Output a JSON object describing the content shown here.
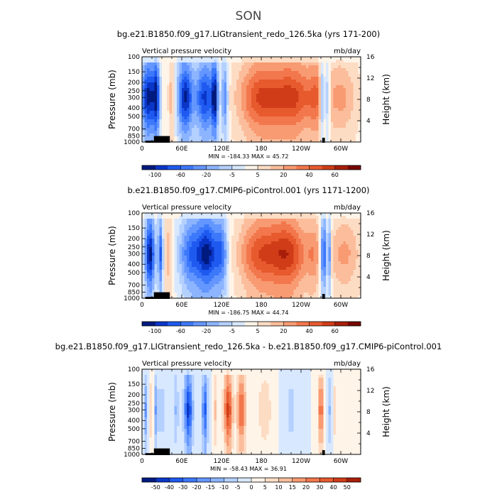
{
  "page": {
    "title": "SON"
  },
  "chart_data": [
    {
      "type": "heatmap",
      "title": "bg.e21.B1850.f09_g17.LIGtransient_redo_126.5ka (yrs 171-200)",
      "left_label": "Vertical pressure velocity",
      "right_label": "mb/day",
      "ylabel": "Pressure (mb)",
      "ylabel_right": "Height (km)",
      "x_ticks": [
        "0",
        "60E",
        "120E",
        "180",
        "120W",
        "60W"
      ],
      "x_tick_values": [
        0,
        60,
        120,
        180,
        240,
        300
      ],
      "xlim": [
        0,
        330
      ],
      "y_ticks": [
        "100",
        "150",
        "200",
        "250",
        "300",
        "400",
        "500",
        "700",
        "850",
        "1000"
      ],
      "y_tick_values": [
        100,
        150,
        200,
        250,
        300,
        400,
        500,
        700,
        850,
        1000
      ],
      "y_scale": "log",
      "ylim": [
        1000,
        100
      ],
      "y2_ticks": [
        "4",
        "8",
        "12",
        "16"
      ],
      "y2_tick_values": [
        4,
        8,
        12,
        16
      ],
      "stats": "MIN = -184.33   MAX =  45.72",
      "colorbar": {
        "labels": [
          "-100",
          "-60",
          "-20",
          "-5",
          "5",
          "20",
          "40",
          "60"
        ],
        "colors": [
          "#001a80",
          "#0a36c8",
          "#1e5af0",
          "#3c78fa",
          "#6496ff",
          "#8cb4ff",
          "#b4d0ff",
          "#d8e8ff",
          "#fff4e8",
          "#fddcc4",
          "#fbbd9b",
          "#f89a72",
          "#f3774c",
          "#e75a2e",
          "#d03c18",
          "#a81e0a",
          "#780800"
        ]
      },
      "anomaly": false,
      "lon_scale": 1.0,
      "features": [
        {
          "lon": 10,
          "w": 12,
          "amp": -1.0
        },
        {
          "lon": 22,
          "w": 5,
          "amp": -0.7
        },
        {
          "lon": 45,
          "w": 5,
          "amp": 0.3
        },
        {
          "lon": 65,
          "w": 12,
          "amp": -0.95
        },
        {
          "lon": 95,
          "w": 15,
          "amp": -0.85
        },
        {
          "lon": 110,
          "w": 5,
          "amp": -0.8
        },
        {
          "lon": 125,
          "w": 5,
          "amp": -0.6
        },
        {
          "lon": 180,
          "w": 35,
          "amp": 0.7
        },
        {
          "lon": 230,
          "w": 30,
          "amp": 0.65
        },
        {
          "lon": 265,
          "w": 15,
          "amp": 0.4
        },
        {
          "lon": 272,
          "w": 4,
          "amp": -0.8
        },
        {
          "lon": 280,
          "w": 4,
          "amp": -0.6
        },
        {
          "lon": 300,
          "w": 25,
          "amp": 0.35
        }
      ]
    },
    {
      "type": "heatmap",
      "title": "b.e21.B1850.f09_g17.CMIP6-piControl.001 (yrs 1171-1200)",
      "left_label": "Vertical pressure velocity",
      "right_label": "mb/day",
      "ylabel": "Pressure (mb)",
      "ylabel_right": "Height (km)",
      "x_ticks": [
        "0",
        "60E",
        "120E",
        "180",
        "120W",
        "60W"
      ],
      "x_tick_values": [
        0,
        60,
        120,
        180,
        240,
        300
      ],
      "xlim": [
        0,
        330
      ],
      "y_ticks": [
        "100",
        "150",
        "200",
        "250",
        "300",
        "400",
        "500",
        "700",
        "850",
        "1000"
      ],
      "y_tick_values": [
        100,
        150,
        200,
        250,
        300,
        400,
        500,
        700,
        850,
        1000
      ],
      "y_scale": "log",
      "ylim": [
        1000,
        100
      ],
      "y2_ticks": [
        "4",
        "8",
        "12",
        "16"
      ],
      "y2_tick_values": [
        4,
        8,
        12,
        16
      ],
      "stats": "MIN = -186.75   MAX =  44.74",
      "colorbar": {
        "labels": [
          "-100",
          "-60",
          "-20",
          "-5",
          "5",
          "20",
          "40",
          "60"
        ],
        "colors": [
          "#001a80",
          "#0a36c8",
          "#1e5af0",
          "#3c78fa",
          "#6496ff",
          "#8cb4ff",
          "#b4d0ff",
          "#d8e8ff",
          "#fff4e8",
          "#fddcc4",
          "#fbbd9b",
          "#f89a72",
          "#f3774c",
          "#e75a2e",
          "#d03c18",
          "#a81e0a",
          "#780800"
        ]
      },
      "anomaly": false,
      "lon_scale": 1.0,
      "features": [
        {
          "lon": 12,
          "w": 8,
          "amp": -1.0
        },
        {
          "lon": 28,
          "w": 4,
          "amp": -0.7
        },
        {
          "lon": 40,
          "w": 6,
          "amp": 0.3
        },
        {
          "lon": 75,
          "w": 20,
          "amp": -0.7
        },
        {
          "lon": 100,
          "w": 15,
          "amp": -0.85
        },
        {
          "lon": 120,
          "w": 10,
          "amp": -0.6
        },
        {
          "lon": 175,
          "w": 30,
          "amp": 0.6
        },
        {
          "lon": 220,
          "w": 30,
          "amp": 0.75
        },
        {
          "lon": 260,
          "w": 12,
          "amp": 0.3
        },
        {
          "lon": 274,
          "w": 5,
          "amp": -0.9
        },
        {
          "lon": 283,
          "w": 3,
          "amp": -0.6
        },
        {
          "lon": 305,
          "w": 25,
          "amp": 0.35
        }
      ]
    },
    {
      "type": "heatmap",
      "title": "bg.e21.B1850.f09_g17.LIGtransient_redo_126.5ka - b.e21.B1850.f09_g17.CMIP6-piControl.001",
      "left_label": "Vertical pressure velocity",
      "right_label": "mb/day",
      "ylabel": "Pressure (mb)",
      "ylabel_right": "Height (km)",
      "x_ticks": [
        "0",
        "60E",
        "120E",
        "180",
        "120W",
        "60W"
      ],
      "x_tick_values": [
        0,
        60,
        120,
        180,
        240,
        300
      ],
      "xlim": [
        0,
        330
      ],
      "y_ticks": [
        "100",
        "150",
        "200",
        "250",
        "300",
        "400",
        "500",
        "700",
        "850",
        "1000"
      ],
      "y_tick_values": [
        100,
        150,
        200,
        250,
        300,
        400,
        500,
        700,
        850,
        1000
      ],
      "y_scale": "log",
      "ylim": [
        1000,
        100
      ],
      "y2_ticks": [
        "4",
        "8",
        "12",
        "16"
      ],
      "y2_tick_values": [
        4,
        8,
        12,
        16
      ],
      "stats": "MIN = -58.43   MAX =  36.91",
      "colorbar": {
        "labels": [
          "-50",
          "-40",
          "-30",
          "-20",
          "-15",
          "-10",
          "-5",
          "0",
          "5",
          "10",
          "15",
          "20",
          "30",
          "40",
          "50"
        ],
        "colors": [
          "#001a80",
          "#0a36c8",
          "#1e5af0",
          "#3c78fa",
          "#6496ff",
          "#8cb4ff",
          "#b4d0ff",
          "#d8e8ff",
          "#fff4e8",
          "#fddcc4",
          "#fbbd9b",
          "#f89a72",
          "#f3774c",
          "#e75a2e",
          "#d03c18",
          "#a81e0a"
        ]
      },
      "anomaly": true,
      "lon_scale": 0.55,
      "features": [
        {
          "lon": 5,
          "w": 4,
          "amp": -0.45
        },
        {
          "lon": 14,
          "w": 3,
          "amp": 0.3
        },
        {
          "lon": 22,
          "w": 4,
          "amp": -0.6
        },
        {
          "lon": 30,
          "w": 4,
          "amp": -0.4
        },
        {
          "lon": 52,
          "w": 5,
          "amp": -0.35
        },
        {
          "lon": 70,
          "w": 12,
          "amp": -0.85
        },
        {
          "lon": 95,
          "w": 8,
          "amp": -0.7
        },
        {
          "lon": 110,
          "w": 5,
          "amp": 0.3
        },
        {
          "lon": 130,
          "w": 12,
          "amp": 0.85
        },
        {
          "lon": 150,
          "w": 12,
          "amp": 0.7
        },
        {
          "lon": 185,
          "w": 20,
          "amp": 0.25
        },
        {
          "lon": 225,
          "w": 15,
          "amp": -0.2
        },
        {
          "lon": 270,
          "w": 6,
          "amp": 0.75
        },
        {
          "lon": 282,
          "w": 4,
          "amp": -0.35
        },
        {
          "lon": 292,
          "w": 4,
          "amp": 0.3
        }
      ]
    }
  ]
}
